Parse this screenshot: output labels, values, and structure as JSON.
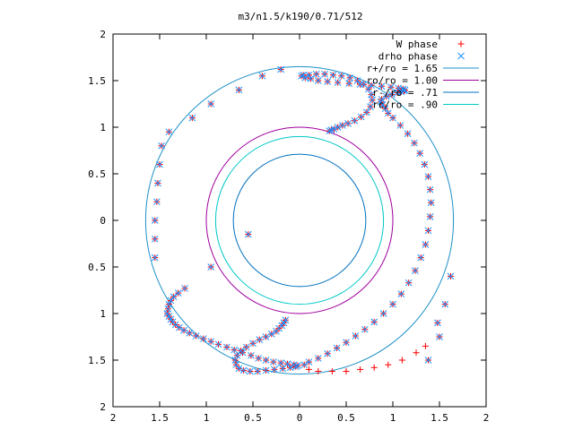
{
  "chart_data": {
    "type": "scatter",
    "title": "m3/n1.5/k190/0.71/512",
    "xlabel": "",
    "ylabel": "",
    "xlim": [
      -2,
      2
    ],
    "ylim": [
      -2,
      2
    ],
    "x_ticks": [
      -2,
      -1.5,
      -1,
      -0.5,
      0,
      0.5,
      1,
      1.5,
      2
    ],
    "y_ticks": [
      -2,
      -1.5,
      -1,
      -0.5,
      0,
      0.5,
      1,
      1.5,
      2
    ],
    "x_tick_labels": [
      "2",
      "1.5",
      "1",
      "0.5",
      "0",
      "0.5",
      "1",
      "1.5",
      "2"
    ],
    "y_tick_labels": [
      "2",
      "1.5",
      "1",
      "0.5",
      "0",
      "0.5",
      "1",
      "1.5",
      "2"
    ],
    "grid": false,
    "legend_position": "top-right",
    "series": [
      {
        "name": "W phase",
        "kind": "points",
        "marker": "plus",
        "color": "#ff0000",
        "x": [
          -0.55,
          -0.95,
          -1.23,
          -1.3,
          -1.35,
          -1.38,
          -1.4,
          -1.41,
          -1.42,
          -1.4,
          -1.38,
          -1.36,
          -1.33,
          -1.29,
          -1.24,
          -1.18,
          -1.11,
          -1.03,
          -0.95,
          -0.87,
          -0.78,
          -0.7,
          -0.61,
          -0.52,
          -0.44,
          -0.36,
          -0.28,
          -0.2,
          -0.13,
          -0.06,
          -0.02,
          -0.04,
          -0.1,
          -0.18,
          -0.27,
          -0.36,
          -0.45,
          -0.53,
          -0.6,
          -0.65,
          -0.68,
          -0.69,
          -0.67,
          -0.63,
          -0.57,
          -0.5,
          -0.43,
          -0.36,
          -0.3,
          -0.25,
          -0.22,
          -0.19,
          -0.17,
          -0.15,
          0.05,
          0.1,
          0.2,
          0.3,
          0.4,
          0.5,
          0.6,
          0.7,
          0.8,
          0.9,
          1.0,
          1.09,
          1.17,
          1.24,
          1.3,
          1.35,
          1.38,
          1.4,
          1.41,
          1.4,
          1.38,
          1.34,
          1.29,
          1.23,
          1.16,
          1.08,
          1.0,
          0.95,
          0.92,
          0.89,
          0.87,
          0.88,
          0.93,
          0.99,
          1.05,
          1.09,
          1.12,
          1.13,
          1.11,
          1.06,
          0.98,
          0.88,
          0.77,
          0.65,
          0.53,
          0.41,
          0.3,
          0.2,
          0.12,
          0.06,
          0.02,
          0.04,
          0.1,
          0.18,
          0.27,
          0.36,
          0.45,
          0.54,
          0.62,
          0.69,
          0.74,
          0.77,
          0.78,
          0.76,
          0.72,
          0.66,
          0.59,
          0.52,
          0.46,
          0.41,
          0.37,
          0.34,
          0.32,
          1.5,
          1.38,
          1.48,
          1.56,
          1.62,
          1.35,
          1.25,
          1.1,
          0.95,
          0.8,
          0.65,
          0.5,
          0.35,
          0.2,
          0.1,
          -0.2,
          -0.4,
          -0.65,
          -0.95,
          -1.15,
          -1.4,
          -1.48,
          -1.5,
          -1.52,
          -1.53,
          -1.55,
          -1.55,
          -1.55
        ],
        "y": [
          -0.15,
          -0.5,
          -0.73,
          -0.78,
          -0.82,
          -0.86,
          -0.9,
          -0.95,
          -1.0,
          -1.03,
          -1.06,
          -1.09,
          -1.12,
          -1.15,
          -1.18,
          -1.21,
          -1.24,
          -1.27,
          -1.3,
          -1.33,
          -1.36,
          -1.39,
          -1.42,
          -1.45,
          -1.48,
          -1.5,
          -1.52,
          -1.53,
          -1.54,
          -1.55,
          -1.56,
          -1.57,
          -1.58,
          -1.59,
          -1.6,
          -1.61,
          -1.62,
          -1.62,
          -1.61,
          -1.59,
          -1.55,
          -1.5,
          -1.45,
          -1.4,
          -1.36,
          -1.32,
          -1.28,
          -1.25,
          -1.22,
          -1.19,
          -1.16,
          -1.13,
          -1.1,
          -1.07,
          -1.55,
          -1.52,
          -1.48,
          -1.43,
          -1.37,
          -1.31,
          -1.24,
          -1.17,
          -1.09,
          -1.0,
          -0.9,
          -0.79,
          -0.67,
          -0.54,
          -0.4,
          -0.26,
          -0.11,
          0.04,
          0.19,
          0.33,
          0.47,
          0.6,
          0.72,
          0.83,
          0.93,
          1.02,
          1.1,
          1.15,
          1.2,
          1.24,
          1.27,
          1.3,
          1.33,
          1.35,
          1.37,
          1.38,
          1.39,
          1.4,
          1.41,
          1.42,
          1.43,
          1.44,
          1.45,
          1.46,
          1.47,
          1.48,
          1.49,
          1.5,
          1.52,
          1.53,
          1.55,
          1.56,
          1.56,
          1.57,
          1.57,
          1.56,
          1.55,
          1.53,
          1.5,
          1.46,
          1.41,
          1.35,
          1.29,
          1.22,
          1.16,
          1.11,
          1.07,
          1.04,
          1.02,
          1.0,
          0.98,
          0.97,
          0.96,
          -1.25,
          -1.5,
          -1.1,
          -0.9,
          -0.6,
          -1.35,
          -1.42,
          -1.5,
          -1.55,
          -1.58,
          -1.6,
          -1.62,
          -1.62,
          -1.62,
          -1.6,
          1.62,
          1.55,
          1.4,
          1.25,
          1.1,
          0.95,
          0.8,
          0.6,
          0.4,
          0.2,
          0.0,
          -0.2,
          -0.4
        ]
      },
      {
        "name": "drho phase",
        "kind": "points",
        "marker": "cross",
        "color": "#1e90ff",
        "x": [
          -0.55,
          -0.95,
          -1.23,
          -1.3,
          -1.35,
          -1.38,
          -1.4,
          -1.41,
          -1.42,
          -1.4,
          -1.38,
          -1.36,
          -1.33,
          -1.29,
          -1.24,
          -1.18,
          -1.11,
          -1.03,
          -0.95,
          -0.87,
          -0.78,
          -0.7,
          -0.61,
          -0.52,
          -0.44,
          -0.36,
          -0.28,
          -0.2,
          -0.13,
          -0.06,
          -0.02,
          -0.04,
          -0.1,
          -0.18,
          -0.27,
          -0.36,
          -0.45,
          -0.53,
          -0.6,
          -0.65,
          -0.68,
          -0.69,
          -0.67,
          -0.63,
          -0.57,
          -0.5,
          -0.43,
          -0.36,
          -0.3,
          -0.25,
          -0.22,
          -0.19,
          -0.17,
          -0.15,
          0.05,
          0.1,
          0.2,
          0.3,
          0.4,
          0.5,
          0.6,
          0.7,
          0.8,
          0.9,
          1.0,
          1.09,
          1.17,
          1.24,
          1.3,
          1.35,
          1.38,
          1.4,
          1.41,
          1.4,
          1.38,
          1.34,
          1.29,
          1.23,
          1.16,
          1.08,
          1.0,
          0.95,
          0.92,
          0.89,
          0.87,
          0.88,
          0.93,
          0.99,
          1.05,
          1.09,
          1.12,
          1.13,
          1.11,
          1.06,
          0.98,
          0.88,
          0.77,
          0.65,
          0.53,
          0.41,
          0.3,
          0.2,
          0.12,
          0.06,
          0.02,
          0.04,
          0.1,
          0.18,
          0.27,
          0.36,
          0.45,
          0.54,
          0.62,
          0.69,
          0.74,
          0.77,
          0.78,
          0.76,
          0.72,
          0.66,
          0.59,
          0.52,
          0.46,
          0.41,
          0.37,
          0.34,
          0.32,
          1.5,
          1.38,
          1.48,
          1.56,
          1.62,
          -0.2,
          -0.4,
          -0.65,
          -0.95,
          -1.15,
          -1.4,
          -1.48,
          -1.5,
          -1.52,
          -1.53,
          -1.55,
          -1.55,
          -1.55
        ],
        "y": [
          -0.15,
          -0.5,
          -0.73,
          -0.78,
          -0.82,
          -0.86,
          -0.9,
          -0.95,
          -1.0,
          -1.03,
          -1.06,
          -1.09,
          -1.12,
          -1.15,
          -1.18,
          -1.21,
          -1.24,
          -1.27,
          -1.3,
          -1.33,
          -1.36,
          -1.39,
          -1.42,
          -1.45,
          -1.48,
          -1.5,
          -1.52,
          -1.53,
          -1.54,
          -1.55,
          -1.56,
          -1.57,
          -1.58,
          -1.59,
          -1.6,
          -1.61,
          -1.62,
          -1.62,
          -1.61,
          -1.59,
          -1.55,
          -1.5,
          -1.45,
          -1.4,
          -1.36,
          -1.32,
          -1.28,
          -1.25,
          -1.22,
          -1.19,
          -1.16,
          -1.13,
          -1.1,
          -1.07,
          -1.55,
          -1.52,
          -1.48,
          -1.43,
          -1.37,
          -1.31,
          -1.24,
          -1.17,
          -1.09,
          -1.0,
          -0.9,
          -0.79,
          -0.67,
          -0.54,
          -0.4,
          -0.26,
          -0.11,
          0.04,
          0.19,
          0.33,
          0.47,
          0.6,
          0.72,
          0.83,
          0.93,
          1.02,
          1.1,
          1.15,
          1.2,
          1.24,
          1.27,
          1.3,
          1.33,
          1.35,
          1.37,
          1.38,
          1.39,
          1.4,
          1.41,
          1.42,
          1.43,
          1.44,
          1.45,
          1.46,
          1.47,
          1.48,
          1.49,
          1.5,
          1.52,
          1.53,
          1.55,
          1.56,
          1.56,
          1.57,
          1.57,
          1.56,
          1.55,
          1.53,
          1.5,
          1.46,
          1.41,
          1.35,
          1.29,
          1.22,
          1.16,
          1.11,
          1.07,
          1.04,
          1.02,
          1.0,
          0.98,
          0.97,
          0.96,
          -1.25,
          -1.5,
          -1.1,
          -0.9,
          -0.6,
          1.62,
          1.55,
          1.4,
          1.25,
          1.1,
          0.95,
          0.8,
          0.6,
          0.4,
          0.2,
          0.0,
          -0.2,
          -0.4
        ]
      },
      {
        "name": "r+/ro = 1.65",
        "kind": "circle",
        "radius": 1.65,
        "color": "#1e90c8"
      },
      {
        "name": "ro/ro = 1.00",
        "kind": "circle",
        "radius": 1.0,
        "color": "#a000a0"
      },
      {
        "name": "r-/ro = .71",
        "kind": "circle",
        "radius": 0.71,
        "color": "#0070c0"
      },
      {
        "name": "rc/ro = .90",
        "kind": "circle",
        "radius": 0.9,
        "color": "#00c8c8"
      }
    ]
  }
}
